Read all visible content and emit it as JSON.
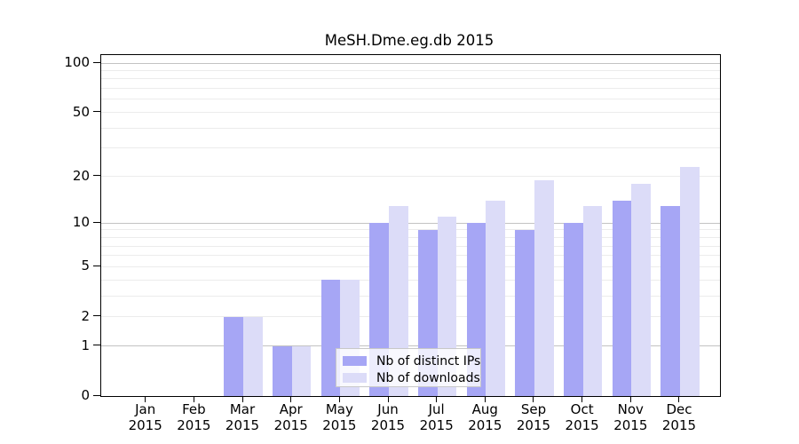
{
  "title": "MeSH.Dme.eg.db 2015",
  "chart_data": {
    "type": "bar",
    "title": "MeSH.Dme.eg.db 2015",
    "categories": [
      "Jan",
      "Feb",
      "Mar",
      "Apr",
      "May",
      "Jun",
      "Jul",
      "Aug",
      "Sep",
      "Oct",
      "Nov",
      "Dec"
    ],
    "category_year": "2015",
    "series": [
      {
        "name": "Nb of distinct IPs",
        "color": "#a6a6f5",
        "values": [
          0,
          0,
          2,
          1,
          4,
          10,
          9,
          10,
          9,
          10,
          14,
          13
        ]
      },
      {
        "name": "Nb of downloads",
        "color": "#dcdcf8",
        "values": [
          0,
          0,
          2,
          1,
          4,
          13,
          11,
          14,
          19,
          13,
          18,
          23
        ]
      }
    ],
    "y_axis": {
      "scale": "log1p",
      "ylim": [
        0,
        100
      ],
      "ticks": [
        0,
        1,
        2,
        5,
        10,
        20,
        50,
        100
      ],
      "major_gridlines": [
        1,
        10,
        100
      ],
      "minor_gridlines": [
        2,
        3,
        4,
        5,
        6,
        7,
        8,
        9,
        20,
        30,
        40,
        50,
        60,
        70,
        80,
        90
      ]
    },
    "legend_position": "bottom-center",
    "grid": true
  },
  "colors": {
    "bar_distinct_ips": "#a6a6f5",
    "bar_downloads": "#dcdcf8",
    "major_gridline": "#c3c3c3",
    "minor_gridline": "#ececec",
    "axis": "#000000",
    "legend_border": "#c8c8c8",
    "text": "#000000"
  }
}
